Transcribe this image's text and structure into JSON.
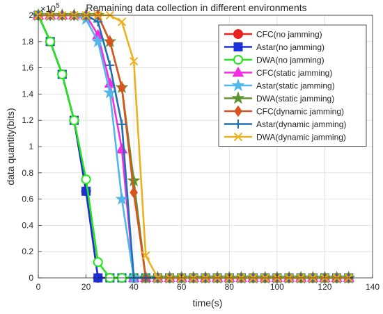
{
  "chart_data": {
    "type": "line",
    "title": "Remaining data collection in different environments",
    "xlabel": "time(s)",
    "ylabel": "data quantity(bits)",
    "y_exponent_label": "×10",
    "y_exponent_power": "5",
    "y_scale": 100000,
    "xlim": [
      0,
      140
    ],
    "ylim": [
      0,
      2
    ],
    "xticks": [
      0,
      20,
      40,
      60,
      80,
      100,
      120,
      140
    ],
    "yticks": [
      0,
      0.2,
      0.4,
      0.6,
      0.8,
      1,
      1.2,
      1.4,
      1.6,
      1.8,
      2
    ],
    "ytick_labels": [
      "0",
      "0.2",
      "0.4",
      "0.6",
      "0.8",
      "1",
      "1.2",
      "1.4",
      "1.6",
      "1.8",
      "2"
    ],
    "grid": true,
    "legend_position": "top-right",
    "series": [
      {
        "name": "CFC(no jamming)",
        "color": "#e8231f",
        "marker": "circle",
        "filled": true,
        "x": [
          0,
          5,
          10,
          15,
          20,
          25,
          30,
          35,
          40,
          45,
          50,
          55,
          60,
          65,
          70,
          75,
          80,
          85,
          90,
          95,
          100,
          105,
          110,
          115,
          120,
          125,
          130
        ],
        "y": [
          2,
          1.8,
          1.55,
          1.2,
          0.66,
          0,
          0,
          0,
          0,
          0,
          0,
          0,
          0,
          0,
          0,
          0,
          0,
          0,
          0,
          0,
          0,
          0,
          0,
          0,
          0,
          0,
          0
        ]
      },
      {
        "name": "Astar(no jamming)",
        "color": "#1b2fd8",
        "marker": "square",
        "filled": true,
        "x": [
          0,
          5,
          10,
          15,
          20,
          25,
          30,
          35,
          40,
          45,
          50,
          55,
          60,
          65,
          70,
          75,
          80,
          85,
          90,
          95,
          100,
          105,
          110,
          115,
          120,
          125,
          130
        ],
        "y": [
          2,
          1.8,
          1.55,
          1.2,
          0.66,
          0,
          0,
          0,
          0,
          0,
          0,
          0,
          0,
          0,
          0,
          0,
          0,
          0,
          0,
          0,
          0,
          0,
          0,
          0,
          0,
          0,
          0
        ]
      },
      {
        "name": "DWA(no jamming)",
        "color": "#1ee81a",
        "marker": "circle",
        "filled": false,
        "x": [
          0,
          5,
          10,
          15,
          20,
          25,
          30,
          35,
          40,
          45,
          50,
          55,
          60,
          65,
          70,
          75,
          80,
          85,
          90,
          95,
          100,
          105,
          110,
          115,
          120,
          125,
          130
        ],
        "y": [
          2,
          1.8,
          1.55,
          1.2,
          0.75,
          0.12,
          0,
          0,
          0,
          0,
          0,
          0,
          0,
          0,
          0,
          0,
          0,
          0,
          0,
          0,
          0,
          0,
          0,
          0,
          0,
          0,
          0
        ]
      },
      {
        "name": "CFC(static jamming)",
        "color": "#f22ee0",
        "marker": "triangle",
        "filled": true,
        "x": [
          0,
          5,
          10,
          15,
          20,
          25,
          30,
          35,
          40,
          45,
          50,
          55,
          60,
          65,
          70,
          75,
          80,
          85,
          90,
          95,
          100,
          105,
          110,
          115,
          120,
          125,
          130
        ],
        "y": [
          2,
          2,
          2,
          2,
          2,
          1.85,
          1.48,
          0.98,
          0,
          0,
          0,
          0,
          0,
          0,
          0,
          0,
          0,
          0,
          0,
          0,
          0,
          0,
          0,
          0,
          0,
          0,
          0
        ]
      },
      {
        "name": "Astar(static jamming)",
        "color": "#52b6ec",
        "marker": "star",
        "filled": true,
        "x": [
          0,
          5,
          10,
          15,
          20,
          25,
          30,
          35,
          40,
          45,
          50,
          55,
          60,
          65,
          70,
          75,
          80,
          85,
          90,
          95,
          100,
          105,
          110,
          115,
          120,
          125,
          130
        ],
        "y": [
          2,
          2,
          2,
          2,
          1.97,
          1.8,
          1.41,
          0.6,
          0,
          0,
          0,
          0,
          0,
          0,
          0,
          0,
          0,
          0,
          0,
          0,
          0,
          0,
          0,
          0,
          0,
          0,
          0
        ]
      },
      {
        "name": "DWA(static jamming)",
        "color": "#5f9430",
        "marker": "star",
        "filled": true,
        "x": [
          0,
          5,
          10,
          15,
          20,
          25,
          30,
          35,
          40,
          45,
          50,
          55,
          60,
          65,
          70,
          75,
          80,
          85,
          90,
          95,
          100,
          105,
          110,
          115,
          120,
          125,
          130
        ],
        "y": [
          2,
          2,
          2,
          2,
          2,
          2,
          1.8,
          1.45,
          0.74,
          0,
          0,
          0,
          0,
          0,
          0,
          0,
          0,
          0,
          0,
          0,
          0,
          0,
          0,
          0,
          0,
          0,
          0
        ]
      },
      {
        "name": "CFC(dynamic jamming)",
        "color": "#d9531e",
        "marker": "diamond",
        "filled": true,
        "x": [
          0,
          5,
          10,
          15,
          20,
          25,
          30,
          35,
          40,
          45,
          50,
          55,
          60,
          65,
          70,
          75,
          80,
          85,
          90,
          95,
          100,
          105,
          110,
          115,
          120,
          125,
          130
        ],
        "y": [
          2,
          2,
          2,
          2,
          2,
          2,
          1.8,
          1.45,
          0.65,
          0,
          0,
          0,
          0,
          0,
          0,
          0,
          0,
          0,
          0,
          0,
          0,
          0,
          0,
          0,
          0,
          0,
          0
        ]
      },
      {
        "name": "Astar(dynamic jamming)",
        "color": "#1f6fb3",
        "marker": "plus",
        "filled": false,
        "x": [
          0,
          5,
          10,
          15,
          20,
          25,
          30,
          35,
          40,
          45,
          50,
          55,
          60,
          65,
          70,
          75,
          80,
          85,
          90,
          95,
          100,
          105,
          110,
          115,
          120,
          125,
          130
        ],
        "y": [
          2,
          2,
          2,
          2,
          2,
          1.95,
          1.62,
          1.17,
          0,
          0,
          0,
          0,
          0,
          0,
          0,
          0,
          0,
          0,
          0,
          0,
          0,
          0,
          0,
          0,
          0,
          0,
          0
        ]
      },
      {
        "name": "DWA(dynamic jamming)",
        "color": "#edb120",
        "marker": "x",
        "filled": false,
        "x": [
          0,
          5,
          10,
          15,
          20,
          25,
          30,
          35,
          40,
          45,
          50,
          55,
          60,
          65,
          70,
          75,
          80,
          85,
          90,
          95,
          100,
          105,
          110,
          115,
          120,
          125,
          130
        ],
        "y": [
          2,
          2,
          2,
          2,
          2,
          2,
          2,
          1.95,
          1.65,
          0.17,
          0,
          0,
          0,
          0,
          0,
          0,
          0,
          0,
          0,
          0,
          0,
          0,
          0,
          0,
          0,
          0,
          0
        ]
      }
    ]
  }
}
